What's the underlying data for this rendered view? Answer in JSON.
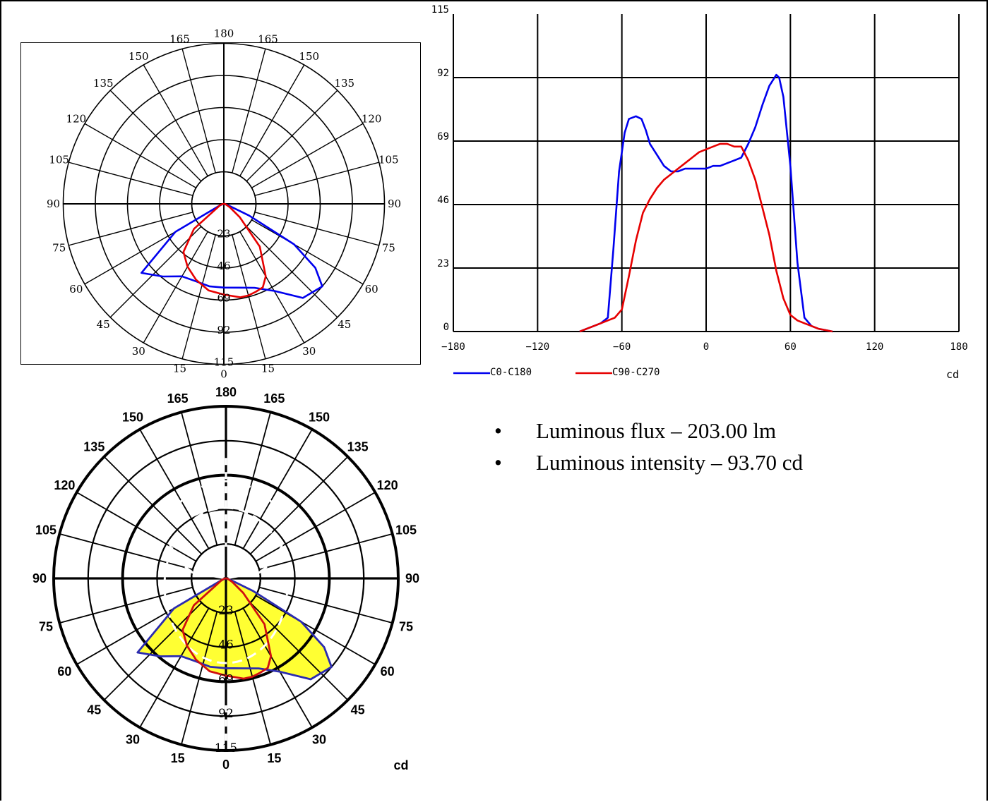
{
  "info": {
    "items": [
      {
        "label": "Luminous flux – 203.00 lm"
      },
      {
        "label": "Luminous intensity – 93.70 cd"
      }
    ]
  },
  "chart_data": [
    {
      "type": "polar",
      "rings": [
        23,
        46,
        69,
        92,
        115
      ],
      "ring_labels": [
        "23",
        "46",
        "69",
        "92",
        "115"
      ],
      "angle_labels": [
        "0",
        "15",
        "30",
        "45",
        "60",
        "75",
        "90",
        "105",
        "120",
        "135",
        "150",
        "165",
        "180"
      ],
      "series": [
        {
          "name": "C0-C180",
          "color": "#0000ee",
          "angles": [
            -90,
            -75,
            -70,
            -65,
            -60,
            -50,
            -40,
            -30,
            -20,
            -10,
            0,
            10,
            20,
            30,
            40,
            50,
            55,
            60,
            65,
            70,
            75,
            90
          ],
          "values": [
            0,
            1,
            2,
            5,
            40,
            77,
            68,
            60,
            59,
            60,
            60,
            61,
            64,
            72,
            88,
            92,
            80,
            58,
            20,
            4,
            1,
            0
          ]
        },
        {
          "name": "C90-C270",
          "color": "#e60000",
          "angles": [
            -90,
            -80,
            -70,
            -60,
            -50,
            -40,
            -30,
            -20,
            -10,
            0,
            10,
            15,
            20,
            25,
            30,
            40,
            50,
            60,
            70,
            80,
            90
          ],
          "values": [
            0,
            1,
            3,
            5,
            28,
            45,
            52,
            58,
            63,
            65,
            68,
            68,
            67,
            66,
            60,
            40,
            15,
            5,
            2,
            1,
            0
          ]
        }
      ]
    },
    {
      "type": "line",
      "xlim": [
        -180,
        180
      ],
      "ylim": [
        0,
        115
      ],
      "xticks": [
        -180,
        -120,
        -60,
        0,
        60,
        120,
        180
      ],
      "xtick_labels": [
        "−180",
        "−120",
        "−60",
        "0",
        "60",
        "120",
        "180"
      ],
      "yticks": [
        0,
        23,
        46,
        69,
        92,
        115
      ],
      "ytick_labels": [
        "0",
        "23",
        "46",
        "69",
        "92",
        "115"
      ],
      "unit_label": "cd",
      "grid": true,
      "legend_position": "bottom-left",
      "series": [
        {
          "name": "C0-C180",
          "color": "#0000ee",
          "x": [
            -90,
            -85,
            -80,
            -75,
            -70,
            -66,
            -62,
            -58,
            -55,
            -50,
            -46,
            -43,
            -40,
            -35,
            -30,
            -25,
            -20,
            -15,
            -10,
            -5,
            0,
            5,
            10,
            15,
            20,
            25,
            30,
            35,
            40,
            45,
            50,
            52,
            55,
            60,
            65,
            70,
            75,
            80,
            85,
            90
          ],
          "y": [
            0,
            1,
            2,
            3,
            5,
            30,
            58,
            72,
            77,
            78,
            77,
            73,
            68,
            64,
            60,
            58,
            58,
            59,
            59,
            59,
            59,
            60,
            60,
            61,
            62,
            63,
            68,
            74,
            82,
            89,
            93,
            92,
            85,
            60,
            25,
            5,
            2,
            1,
            0.5,
            0
          ]
        },
        {
          "name": "C90-C270",
          "color": "#e60000",
          "x": [
            -90,
            -85,
            -80,
            -75,
            -70,
            -65,
            -60,
            -55,
            -50,
            -45,
            -40,
            -35,
            -30,
            -25,
            -20,
            -15,
            -10,
            -5,
            0,
            5,
            10,
            15,
            20,
            25,
            30,
            35,
            40,
            45,
            50,
            55,
            60,
            65,
            70,
            75,
            80,
            85,
            90
          ],
          "y": [
            0,
            1,
            2,
            3,
            4,
            5,
            8,
            20,
            33,
            43,
            48,
            52,
            55,
            57,
            59,
            61,
            63,
            65,
            66,
            67,
            68,
            68,
            67,
            67,
            62,
            55,
            45,
            35,
            22,
            12,
            6,
            4,
            3,
            2,
            1,
            0.5,
            0
          ]
        }
      ]
    },
    {
      "type": "polar",
      "rings": [
        23,
        46,
        69,
        92,
        115
      ],
      "ring_labels": [
        "23",
        "46",
        "69",
        "92",
        "115"
      ],
      "angle_labels": [
        "0",
        "15",
        "30",
        "45",
        "60",
        "75",
        "90",
        "105",
        "120",
        "135",
        "150",
        "165",
        "180"
      ],
      "unit_label": "cd",
      "fill_color": "#ffff33",
      "series": [
        {
          "name": "C0-C180",
          "color": "#2b2bb0",
          "angles": [
            -90,
            -75,
            -70,
            -65,
            -60,
            -50,
            -40,
            -30,
            -20,
            -10,
            0,
            10,
            20,
            30,
            40,
            50,
            55,
            60,
            65,
            70,
            75,
            90
          ],
          "values": [
            0,
            1,
            2,
            5,
            40,
            77,
            68,
            60,
            59,
            60,
            60,
            61,
            64,
            72,
            88,
            92,
            80,
            58,
            20,
            4,
            1,
            0
          ]
        },
        {
          "name": "C90-C270",
          "color": "#d01010",
          "angles": [
            -90,
            -80,
            -70,
            -60,
            -50,
            -40,
            -30,
            -20,
            -10,
            0,
            10,
            15,
            20,
            25,
            30,
            40,
            50,
            60,
            70,
            80,
            90
          ],
          "values": [
            0,
            1,
            3,
            5,
            28,
            45,
            52,
            58,
            63,
            65,
            68,
            68,
            67,
            66,
            60,
            40,
            15,
            5,
            2,
            1,
            0
          ]
        }
      ]
    }
  ]
}
